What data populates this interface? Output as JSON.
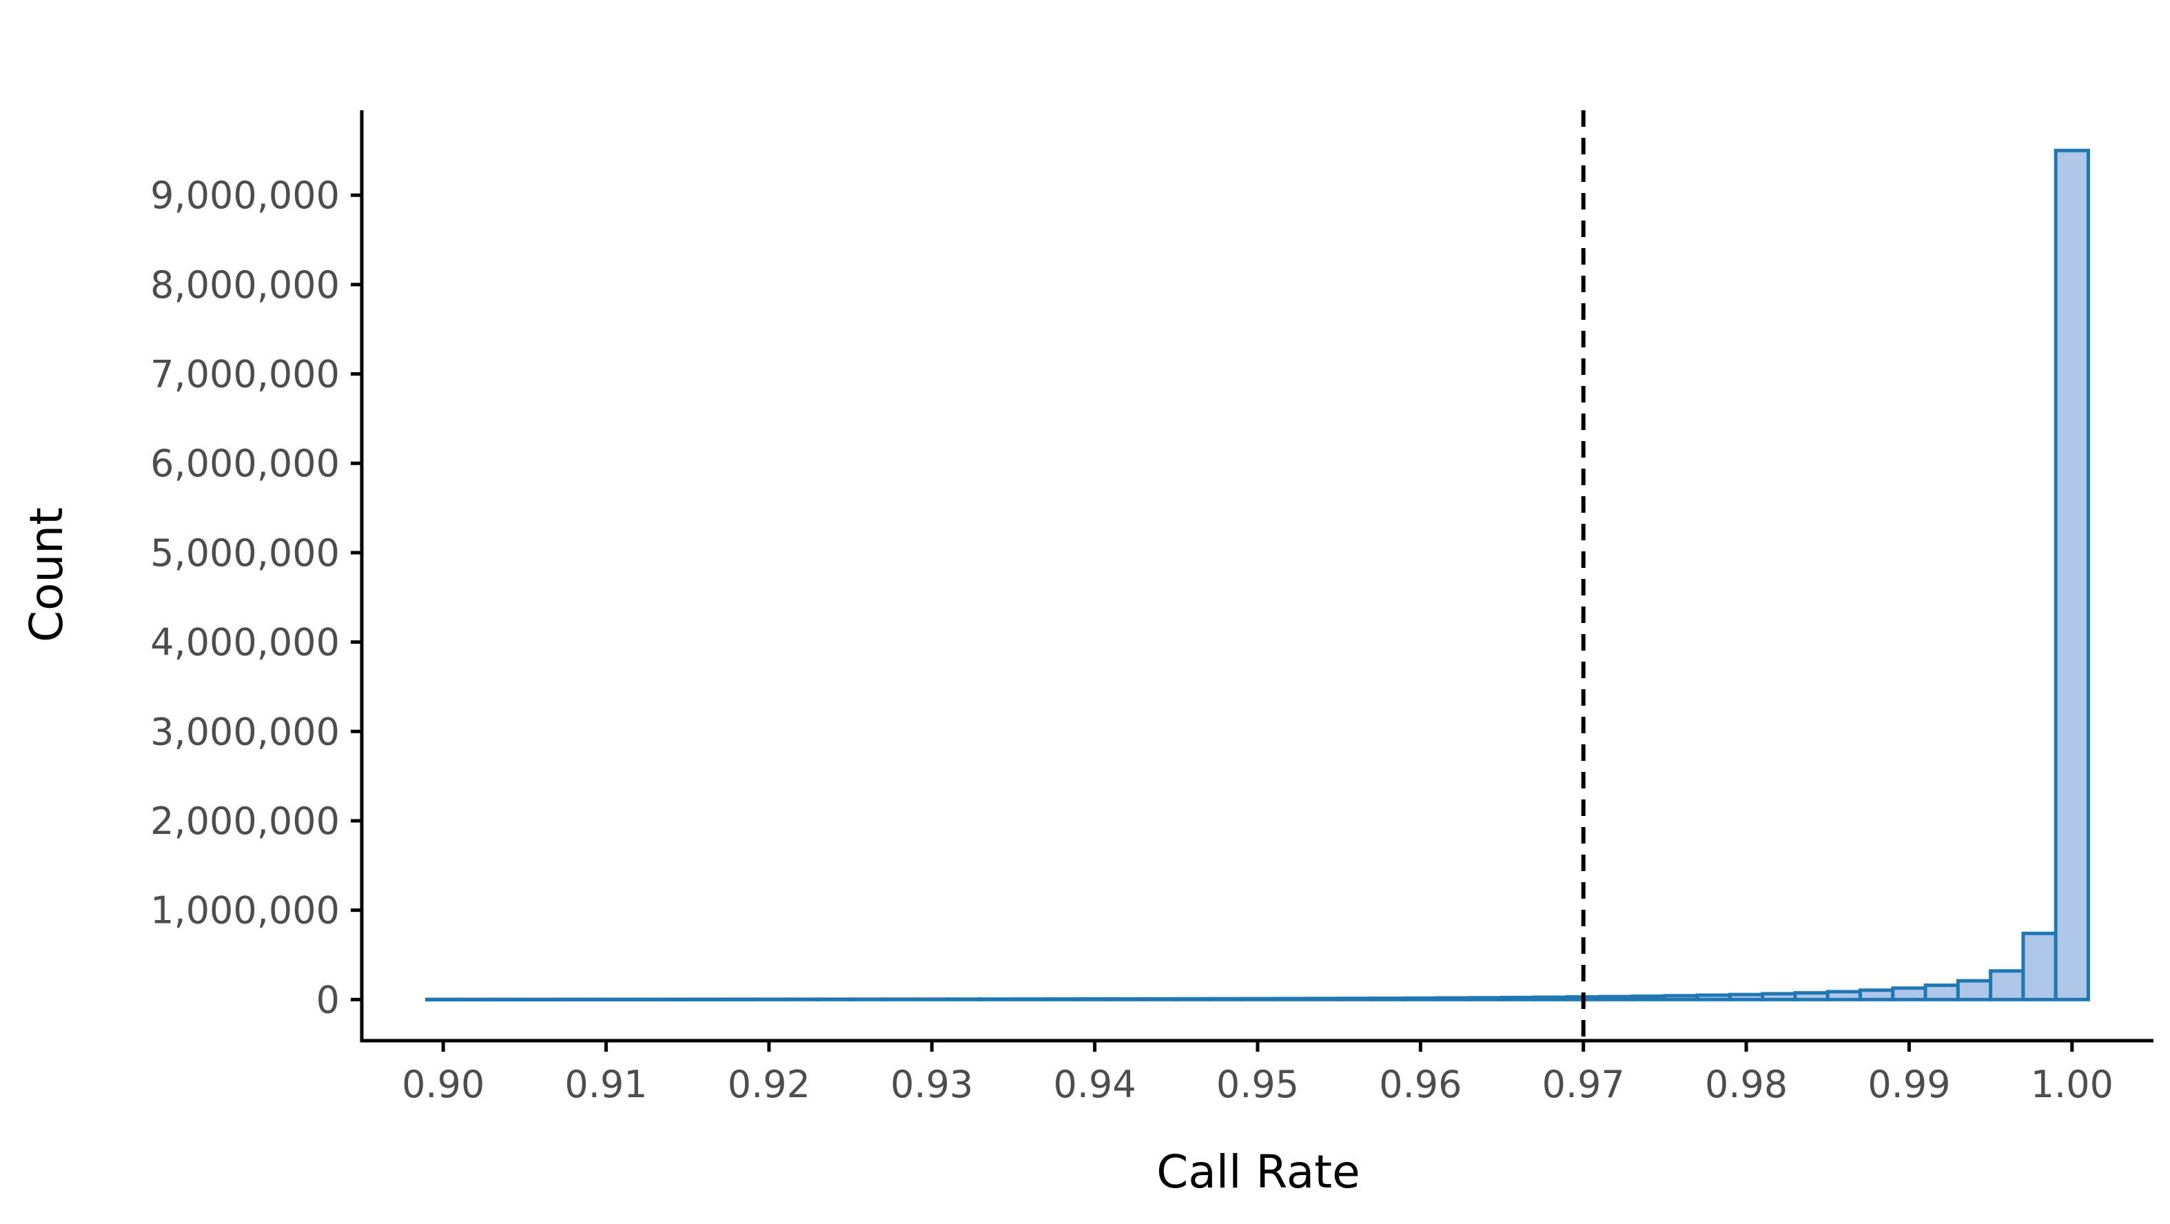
{
  "chart_data": {
    "type": "bar",
    "title": "",
    "xlabel": "Call Rate",
    "ylabel": "Count",
    "xlim": [
      0.895,
      1.005
    ],
    "ylim": [
      -460000,
      9950000
    ],
    "x_ticks": [
      "0.90",
      "0.91",
      "0.92",
      "0.93",
      "0.94",
      "0.95",
      "0.96",
      "0.97",
      "0.98",
      "0.99",
      "1.00"
    ],
    "y_ticks": [
      "0",
      "1,000,000",
      "2,000,000",
      "3,000,000",
      "4,000,000",
      "5,000,000",
      "6,000,000",
      "7,000,000",
      "8,000,000",
      "9,000,000"
    ],
    "bin_width": 0.002,
    "x": [
      0.9,
      0.902,
      0.904,
      0.906,
      0.908,
      0.91,
      0.912,
      0.914,
      0.916,
      0.918,
      0.92,
      0.922,
      0.924,
      0.926,
      0.928,
      0.93,
      0.932,
      0.934,
      0.936,
      0.938,
      0.94,
      0.942,
      0.944,
      0.946,
      0.948,
      0.95,
      0.952,
      0.954,
      0.956,
      0.958,
      0.96,
      0.962,
      0.964,
      0.966,
      0.968,
      0.97,
      0.972,
      0.974,
      0.976,
      0.978,
      0.98,
      0.982,
      0.984,
      0.986,
      0.988,
      0.99,
      0.992,
      0.994,
      0.996,
      0.998,
      1.0
    ],
    "values": [
      2000,
      2100,
      2200,
      2300,
      2400,
      2500,
      2700,
      2800,
      3000,
      3200,
      3400,
      3600,
      3800,
      4000,
      4300,
      4600,
      4900,
      5200,
      5600,
      6000,
      6500,
      7000,
      7600,
      8200,
      9000,
      9800,
      10800,
      11900,
      13200,
      14600,
      16300,
      18200,
      20400,
      23000,
      26000,
      29500,
      33500,
      38000,
      43000,
      49000,
      56000,
      65000,
      75000,
      88000,
      105000,
      128000,
      160000,
      210000,
      320000,
      740000,
      9500000
    ],
    "reference_line": {
      "x": 0.97,
      "style": "dashed",
      "color": "#000000"
    },
    "colors": {
      "bar_fill": "#aec7e8",
      "bar_edge": "#1f77b4",
      "axis": "#000000",
      "tick_text": "#4d4d4d"
    },
    "grid": false,
    "legend": "none"
  }
}
